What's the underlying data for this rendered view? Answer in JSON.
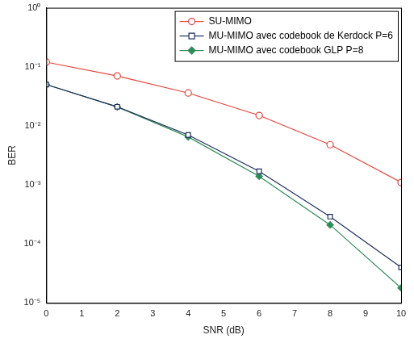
{
  "chart_data": {
    "type": "line",
    "x_label": "SNR (dB)",
    "y_label": "BER",
    "log": "y",
    "grid": false,
    "legend": "upper right",
    "xlim": [
      0,
      10
    ],
    "xticks": [
      0,
      1,
      2,
      3,
      4,
      5,
      6,
      7,
      8,
      9,
      10
    ],
    "ylim": [
      1e-05,
      1
    ],
    "yticks": [
      {
        "value": 1e-05,
        "label": "10⁻⁵"
      },
      {
        "value": 0.0001,
        "label": "10⁻⁴"
      },
      {
        "value": 0.001,
        "label": "10⁻³"
      },
      {
        "value": 0.01,
        "label": "10⁻²"
      },
      {
        "value": 0.1,
        "label": "10⁻¹"
      },
      {
        "value": 1,
        "label": "10⁰"
      }
    ],
    "x": [
      0,
      2,
      4,
      6,
      8,
      10
    ],
    "series": [
      {
        "name": "SU-MIMO",
        "color": "#e8443a",
        "marker": "circle",
        "values": [
          0.12,
          0.07,
          0.036,
          0.015,
          0.0048,
          0.0011
        ]
      },
      {
        "name": "MU-MIMO avec codebook de Kerdock P=6",
        "color": "#1f2f5f",
        "marker": "square",
        "values": [
          0.05,
          0.021,
          0.007,
          0.0017,
          0.00029,
          4e-05
        ]
      },
      {
        "name": "MU-MIMO avec codebook GLP P=8",
        "color": "#2e8b57",
        "marker": "diamond",
        "values": [
          0.05,
          0.021,
          0.0065,
          0.0014,
          0.00021,
          1.8e-05
        ]
      }
    ]
  }
}
